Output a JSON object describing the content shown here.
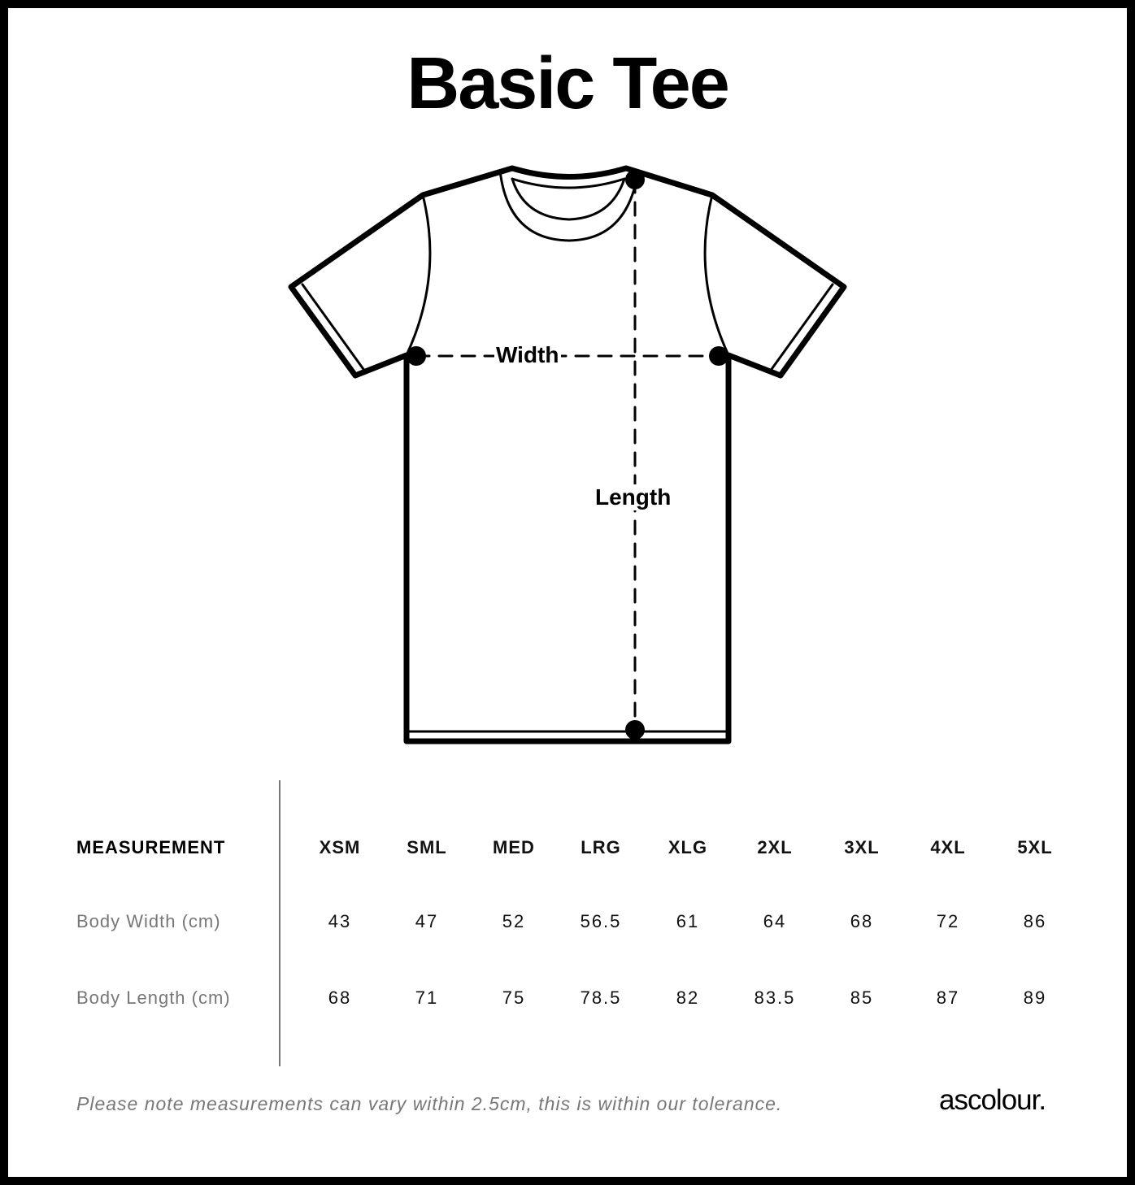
{
  "title": "Basic Tee",
  "diagram": {
    "width_label": "Width",
    "length_label": "Length"
  },
  "table": {
    "header_label": "MEASUREMENT",
    "sizes": [
      "XSM",
      "SML",
      "MED",
      "LRG",
      "XLG",
      "2XL",
      "3XL",
      "4XL",
      "5XL"
    ],
    "rows": [
      {
        "label": "Body Width (cm)",
        "values": [
          "43",
          "47",
          "52",
          "56.5",
          "61",
          "64",
          "68",
          "72",
          "86"
        ]
      },
      {
        "label": "Body Length (cm)",
        "values": [
          "68",
          "71",
          "75",
          "78.5",
          "82",
          "83.5",
          "85",
          "87",
          "89"
        ]
      }
    ]
  },
  "note": "Please note measurements can vary within 2.5cm, this is within our tolerance.",
  "brand": "ascolour."
}
